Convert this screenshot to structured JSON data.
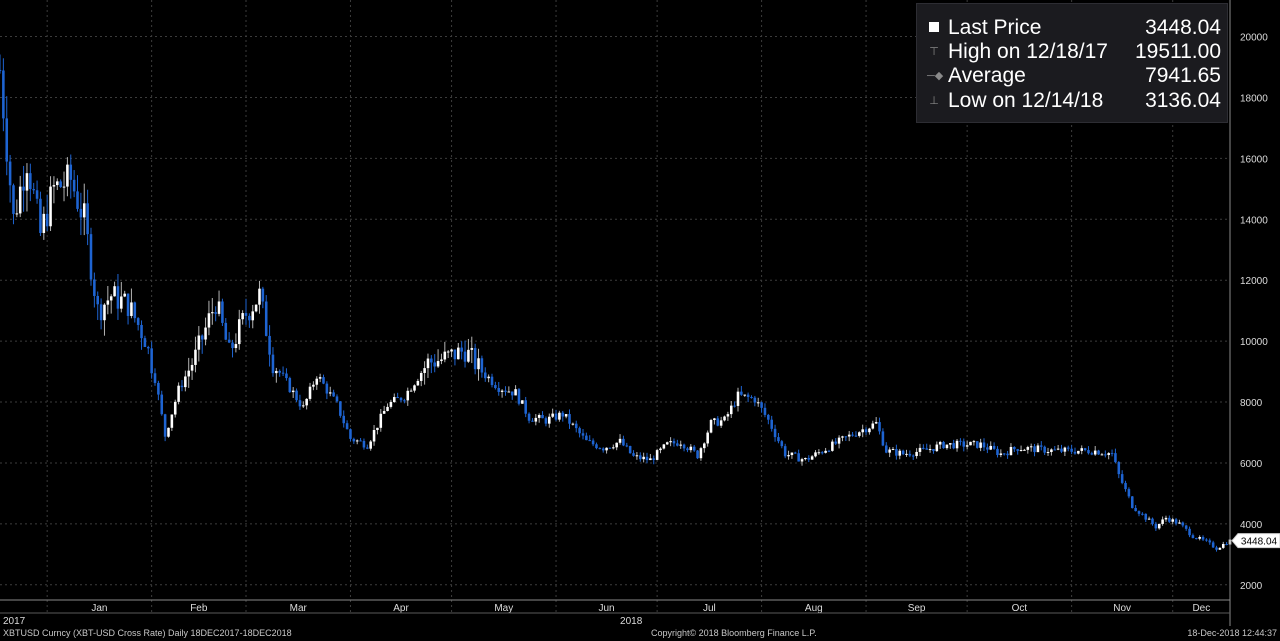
{
  "chart_data": {
    "type": "candlestick",
    "ticker_line": "XBTUSD Curncy (XBT-USD Cross Rate)  Daily 18DEC2017-18DEC2018",
    "ylim": [
      1500,
      21200
    ],
    "y_ticks": [
      2000,
      4000,
      6000,
      8000,
      10000,
      12000,
      14000,
      16000,
      18000,
      20000
    ],
    "y_tick_labels": [
      "2000",
      "4000",
      "6000",
      "8000",
      "10000",
      "12000",
      "14000",
      "16000",
      "18000",
      "20000"
    ],
    "x_month_labels": [
      "Jan",
      "Feb",
      "Mar",
      "Apr",
      "May",
      "Jun",
      "Jul",
      "Aug",
      "Sep",
      "Oct",
      "Nov",
      "Dec"
    ],
    "x_year_labels": [
      "2017",
      "2018"
    ],
    "x_range": [
      "2017-12-18",
      "2018-12-18"
    ],
    "last_price_tag": "3448.04",
    "grid": true,
    "legend_placement": "top-right",
    "colors": {
      "up": "#ffffff",
      "down": "#1e64d2",
      "grid": "#3c3c3c",
      "background": "#000000"
    },
    "series_close": [
      {
        "date": "2017-12-18",
        "close": 18900
      },
      {
        "date": "2017-12-22",
        "close": 14000
      },
      {
        "date": "2017-12-26",
        "close": 16000
      },
      {
        "date": "2017-12-30",
        "close": 13500
      },
      {
        "date": "2018-01-03",
        "close": 15000
      },
      {
        "date": "2018-01-08",
        "close": 15300
      },
      {
        "date": "2018-01-12",
        "close": 14000
      },
      {
        "date": "2018-01-16",
        "close": 11000
      },
      {
        "date": "2018-01-20",
        "close": 11500
      },
      {
        "date": "2018-01-25",
        "close": 11200
      },
      {
        "date": "2018-01-30",
        "close": 10100
      },
      {
        "date": "2018-02-02",
        "close": 8800
      },
      {
        "date": "2018-02-05",
        "close": 6900
      },
      {
        "date": "2018-02-09",
        "close": 8400
      },
      {
        "date": "2018-02-14",
        "close": 9500
      },
      {
        "date": "2018-02-20",
        "close": 11300
      },
      {
        "date": "2018-02-24",
        "close": 9600
      },
      {
        "date": "2018-03-01",
        "close": 10900
      },
      {
        "date": "2018-03-05",
        "close": 11500
      },
      {
        "date": "2018-03-09",
        "close": 9300
      },
      {
        "date": "2018-03-15",
        "close": 8300
      },
      {
        "date": "2018-03-18",
        "close": 7800
      },
      {
        "date": "2018-03-22",
        "close": 8900
      },
      {
        "date": "2018-03-28",
        "close": 7900
      },
      {
        "date": "2018-04-01",
        "close": 6800
      },
      {
        "date": "2018-04-06",
        "close": 6600
      },
      {
        "date": "2018-04-12",
        "close": 7900
      },
      {
        "date": "2018-04-17",
        "close": 8200
      },
      {
        "date": "2018-04-24",
        "close": 9300
      },
      {
        "date": "2018-04-28",
        "close": 9400
      },
      {
        "date": "2018-05-05",
        "close": 9700
      },
      {
        "date": "2018-05-10",
        "close": 9000
      },
      {
        "date": "2018-05-15",
        "close": 8500
      },
      {
        "date": "2018-05-20",
        "close": 8300
      },
      {
        "date": "2018-05-24",
        "close": 7500
      },
      {
        "date": "2018-05-29",
        "close": 7400
      },
      {
        "date": "2018-06-03",
        "close": 7600
      },
      {
        "date": "2018-06-10",
        "close": 6700
      },
      {
        "date": "2018-06-15",
        "close": 6500
      },
      {
        "date": "2018-06-20",
        "close": 6700
      },
      {
        "date": "2018-06-24",
        "close": 6200
      },
      {
        "date": "2018-06-29",
        "close": 6100
      },
      {
        "date": "2018-07-04",
        "close": 6600
      },
      {
        "date": "2018-07-08",
        "close": 6700
      },
      {
        "date": "2018-07-13",
        "close": 6250
      },
      {
        "date": "2018-07-17",
        "close": 7300
      },
      {
        "date": "2018-07-21",
        "close": 7400
      },
      {
        "date": "2018-07-25",
        "close": 8200
      },
      {
        "date": "2018-07-30",
        "close": 8100
      },
      {
        "date": "2018-08-03",
        "close": 7400
      },
      {
        "date": "2018-08-08",
        "close": 6300
      },
      {
        "date": "2018-08-14",
        "close": 6100
      },
      {
        "date": "2018-08-19",
        "close": 6400
      },
      {
        "date": "2018-08-24",
        "close": 6700
      },
      {
        "date": "2018-08-29",
        "close": 7000
      },
      {
        "date": "2018-09-04",
        "close": 7300
      },
      {
        "date": "2018-09-07",
        "close": 6400
      },
      {
        "date": "2018-09-12",
        "close": 6300
      },
      {
        "date": "2018-09-18",
        "close": 6400
      },
      {
        "date": "2018-09-24",
        "close": 6600
      },
      {
        "date": "2018-09-30",
        "close": 6600
      },
      {
        "date": "2018-10-05",
        "close": 6600
      },
      {
        "date": "2018-10-11",
        "close": 6300
      },
      {
        "date": "2018-10-16",
        "close": 6500
      },
      {
        "date": "2018-10-22",
        "close": 6450
      },
      {
        "date": "2018-10-27",
        "close": 6400
      },
      {
        "date": "2018-11-02",
        "close": 6400
      },
      {
        "date": "2018-11-08",
        "close": 6400
      },
      {
        "date": "2018-11-13",
        "close": 6300
      },
      {
        "date": "2018-11-15",
        "close": 5600
      },
      {
        "date": "2018-11-19",
        "close": 4600
      },
      {
        "date": "2018-11-22",
        "close": 4300
      },
      {
        "date": "2018-11-26",
        "close": 3900
      },
      {
        "date": "2018-11-29",
        "close": 4200
      },
      {
        "date": "2018-12-03",
        "close": 4000
      },
      {
        "date": "2018-12-07",
        "close": 3600
      },
      {
        "date": "2018-12-11",
        "close": 3400
      },
      {
        "date": "2018-12-14",
        "close": 3200
      },
      {
        "date": "2018-12-18",
        "close": 3448.04
      }
    ]
  },
  "legend": [
    {
      "label": "Last Price",
      "value": "3448.04",
      "icon": "filled-square-icon"
    },
    {
      "label": "High on 12/18/17",
      "value": "19511.00",
      "icon": "high-marker-icon"
    },
    {
      "label": "Average",
      "value": "7941.65",
      "icon": "average-marker-icon"
    },
    {
      "label": "Low on 12/14/18",
      "value": "3136.04",
      "icon": "low-marker-icon"
    }
  ],
  "footer": {
    "left": "XBTUSD Curncy (XBT-USD Cross Rate)  Daily 18DEC2017-18DEC2018",
    "center": "Copyright© 2018 Bloomberg Finance L.P.",
    "right": "18-Dec-2018 12:44:37"
  }
}
